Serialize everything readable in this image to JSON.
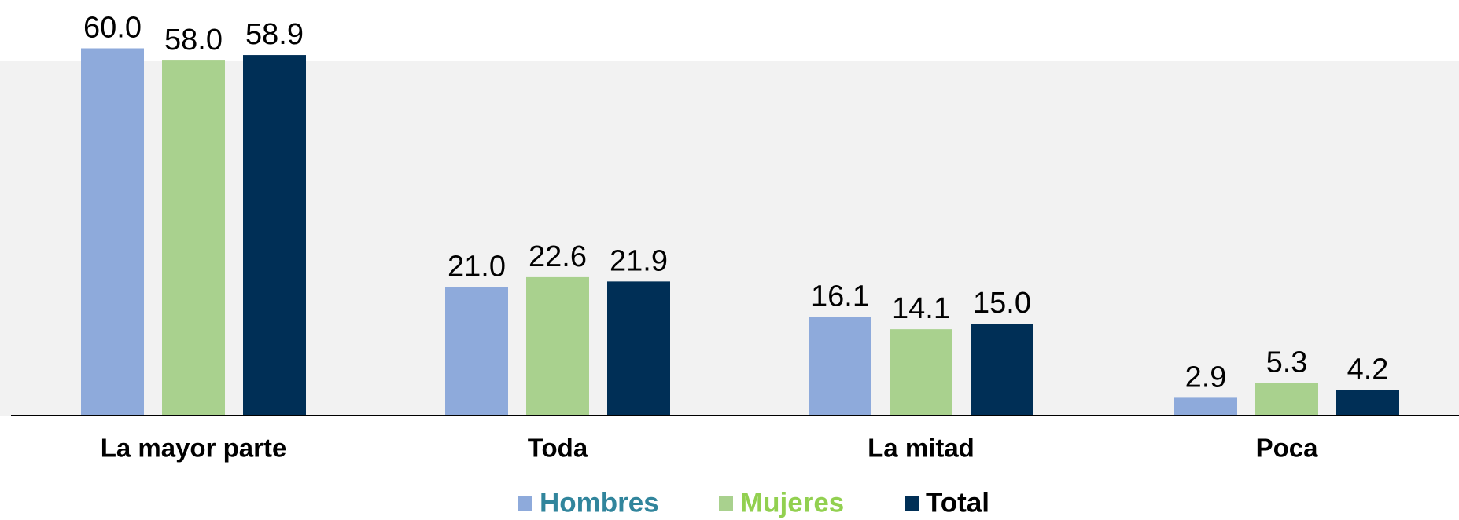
{
  "chart_data": {
    "type": "bar",
    "categories": [
      "La mayor parte",
      "Toda",
      "La mitad",
      "Poca"
    ],
    "series": [
      {
        "name": "Hombres",
        "color": "#8eaadb",
        "legend_text_color": "#31859c",
        "values": [
          60.0,
          21.0,
          16.1,
          2.9
        ],
        "value_labels": [
          "60.0",
          "21.0",
          "16.1",
          "2.9"
        ]
      },
      {
        "name": "Mujeres",
        "color": "#a9d18e",
        "legend_text_color": "#92d050",
        "values": [
          58.0,
          22.6,
          14.1,
          5.3
        ],
        "value_labels": [
          "58.0",
          "22.6",
          "14.1",
          "5.3"
        ]
      },
      {
        "name": "Total",
        "color": "#002f56",
        "legend_text_color": "#000000",
        "values": [
          58.9,
          21.9,
          15.0,
          4.2
        ],
        "value_labels": [
          "58.9",
          "21.9",
          "15.0",
          "4.2"
        ]
      }
    ],
    "ylim": [
      0,
      60
    ],
    "legend": "bottom"
  }
}
